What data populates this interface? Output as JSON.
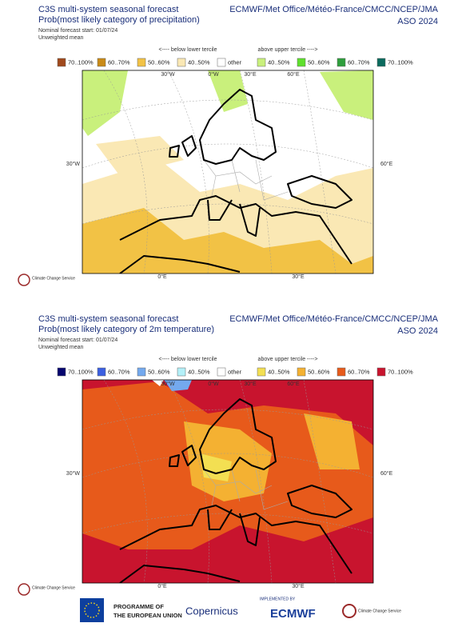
{
  "panels": [
    {
      "title": "C3S multi-system seasonal forecast",
      "subtitle": "Prob(most likely category of precipitation)",
      "forecast_start": "Nominal forecast start: 01/07/24",
      "mean": "Unweighted mean",
      "providers": "ECMWF/Met Office/Météo-France/CMCC/NCEP/JMA",
      "season": "ASO 2024",
      "below_label": "<---- below lower tercile",
      "above_label": "above upper tercile ---->",
      "legend": [
        {
          "label": "70..100%",
          "color": "#a0491c"
        },
        {
          "label": "60..70%",
          "color": "#c98a17"
        },
        {
          "label": "50..60%",
          "color": "#f2c245"
        },
        {
          "label": "40..50%",
          "color": "#fae8b4"
        },
        {
          "label": "other",
          "color": "#ffffff"
        },
        {
          "label": "40..50%",
          "color": "#c9f07c"
        },
        {
          "label": "50..60%",
          "color": "#5fe02c"
        },
        {
          "label": "60..70%",
          "color": "#2e9e3c"
        },
        {
          "label": "70..100%",
          "color": "#0b6b5e"
        }
      ],
      "map_labels": {
        "top": [
          "30°W",
          "0°W",
          "30°E",
          "60°E"
        ],
        "left": "30°W",
        "right": "60°E",
        "bottom": [
          "0°E",
          "30°E"
        ]
      },
      "logo": "Climate Change Service"
    },
    {
      "title": "C3S multi-system seasonal forecast",
      "subtitle": "Prob(most likely category of 2m temperature)",
      "forecast_start": "Nominal forecast start: 01/07/24",
      "mean": "Unweighted mean",
      "providers": "ECMWF/Met Office/Météo-France/CMCC/NCEP/JMA",
      "season": "ASO 2024",
      "below_label": "<---- below lower tercile",
      "above_label": "above upper tercile ---->",
      "legend": [
        {
          "label": "70..100%",
          "color": "#05056e"
        },
        {
          "label": "60..70%",
          "color": "#3b5fe0"
        },
        {
          "label": "50..60%",
          "color": "#74a9ee"
        },
        {
          "label": "40..50%",
          "color": "#b4f0f8"
        },
        {
          "label": "other",
          "color": "#ffffff"
        },
        {
          "label": "40..50%",
          "color": "#f3df52"
        },
        {
          "label": "50..60%",
          "color": "#f4b132"
        },
        {
          "label": "60..70%",
          "color": "#e75a1b"
        },
        {
          "label": "70..100%",
          "color": "#c8142e"
        }
      ],
      "map_labels": {
        "top": [
          "30°W",
          "0°W",
          "30°E",
          "60°E"
        ],
        "left": "30°W",
        "right": "60°E",
        "bottom": [
          "0°E",
          "30°E"
        ]
      },
      "logo": "Climate Change Service"
    }
  ],
  "footer": {
    "eu_line1": "PROGRAMME OF",
    "eu_line2": "THE EUROPEAN UNION",
    "copernicus": "Copernicus",
    "implemented_by": "IMPLEMENTED BY",
    "ecmwf": "ECMWF",
    "c3s": "Climate Change Service"
  }
}
